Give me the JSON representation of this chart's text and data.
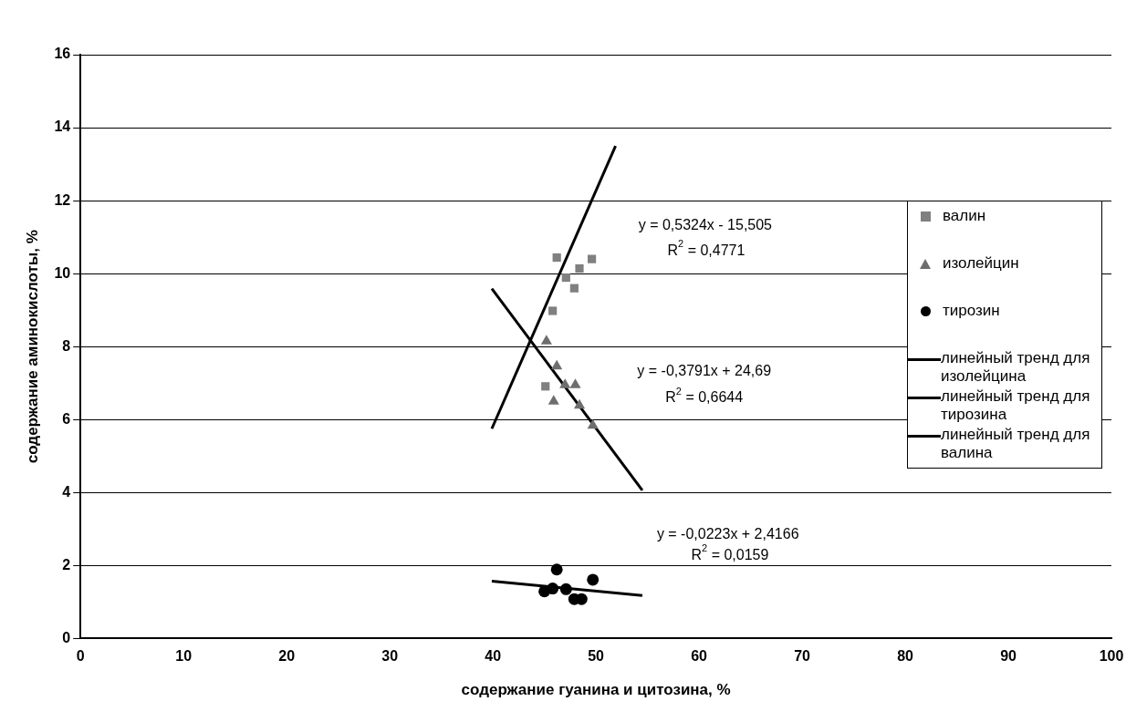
{
  "chart_data": {
    "type": "scatter",
    "xlabel": "содержание гуанина и цитозина, %",
    "ylabel": "содержание аминокислоты, %",
    "xlim": [
      0,
      100
    ],
    "xticks": [
      0,
      10,
      20,
      30,
      40,
      50,
      60,
      70,
      80,
      90,
      100
    ],
    "ylim": [
      0,
      16
    ],
    "yticks": [
      0,
      2,
      4,
      6,
      8,
      10,
      12,
      14,
      16
    ],
    "grid": "y",
    "legend": "right",
    "series": [
      {
        "name": "валин",
        "marker": "square",
        "color": "#808080",
        "x": [
          46.2,
          49.6,
          48.4,
          47.1,
          47.9,
          45.8,
          45.1
        ],
        "values": [
          10.44,
          10.4,
          10.14,
          9.89,
          9.6,
          8.98,
          6.91
        ]
      },
      {
        "name": "изолейцин",
        "marker": "triangle",
        "color": "#6e6e6e",
        "x": [
          45.2,
          46.2,
          48.0,
          47.0,
          45.9,
          48.4,
          49.7
        ],
        "values": [
          8.15,
          7.46,
          6.95,
          6.95,
          6.5,
          6.39,
          5.84
        ]
      },
      {
        "name": "тирозин",
        "marker": "circle",
        "color": "#000000",
        "x": [
          46.2,
          49.7,
          45.8,
          47.1,
          45.0,
          47.9,
          48.6
        ],
        "values": [
          1.89,
          1.61,
          1.37,
          1.35,
          1.29,
          1.08,
          1.08
        ]
      },
      {
        "name": "линейный тренд для изолейцина",
        "type": "line",
        "marker": "none",
        "color": "#000000",
        "x": [
          39.9,
          54.5
        ],
        "values": [
          9.59,
          4.06
        ]
      },
      {
        "name": "линейный тренд для тирозина",
        "type": "line",
        "marker": "none",
        "color": "#000000",
        "x": [
          39.9,
          54.5
        ],
        "values": [
          1.57,
          1.18
        ]
      },
      {
        "name": "линейный тренд для валина",
        "type": "line",
        "marker": "none",
        "color": "#000000",
        "x": [
          39.9,
          51.9
        ],
        "values": [
          5.75,
          13.5
        ]
      }
    ],
    "annotations": [
      "y = 0,5324x - 15,505",
      "R$^{2}$ = 0,4771",
      "y = -0,3791x + 24,69",
      "R$^{2}$ = 0,6644",
      "y = -0,0223x + 2,4166",
      "R$^{2}$ = 0,0159"
    ]
  }
}
